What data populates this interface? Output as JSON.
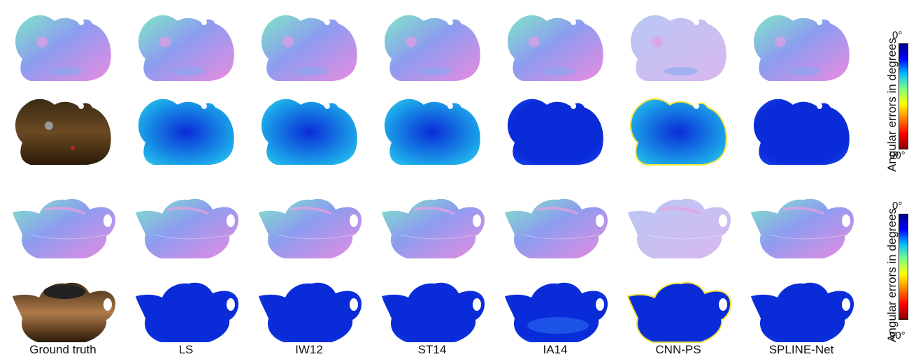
{
  "columns": [
    "Ground truth",
    "LS",
    "IW12",
    "ST14",
    "IA14",
    "CNN-PS",
    "SPLINE-Net"
  ],
  "rows": [
    {
      "object": "cat",
      "kind": "normal-map"
    },
    {
      "object": "cat",
      "kind": "error-map"
    },
    {
      "object": "teapot",
      "kind": "normal-map"
    },
    {
      "object": "teapot",
      "kind": "error-map"
    }
  ],
  "colorbars": [
    {
      "title": "Angular errors in degrees",
      "min_label": "0°",
      "max_label": "90°",
      "colors": [
        "#00008b",
        "#0000ff",
        "#00bfff",
        "#7fff7f",
        "#ffff00",
        "#ff7f00",
        "#ff0000",
        "#8b0000"
      ]
    },
    {
      "title": "Angular errors in degrees",
      "min_label": "0°",
      "max_label": "90°",
      "colors": [
        "#00008b",
        "#0000ff",
        "#00bfff",
        "#7fff7f",
        "#ffff00",
        "#ff7f00",
        "#ff0000",
        "#8b0000"
      ]
    }
  ],
  "colors": {
    "normal_pink": "#e98be0",
    "normal_cyan": "#7fe6c8",
    "normal_blue": "#8d9cf0",
    "photo_cat": "#6b4a22",
    "photo_teapot": "#b07a4a",
    "error_low": "#0a2cd8",
    "error_mid": "#1aa0e8"
  }
}
